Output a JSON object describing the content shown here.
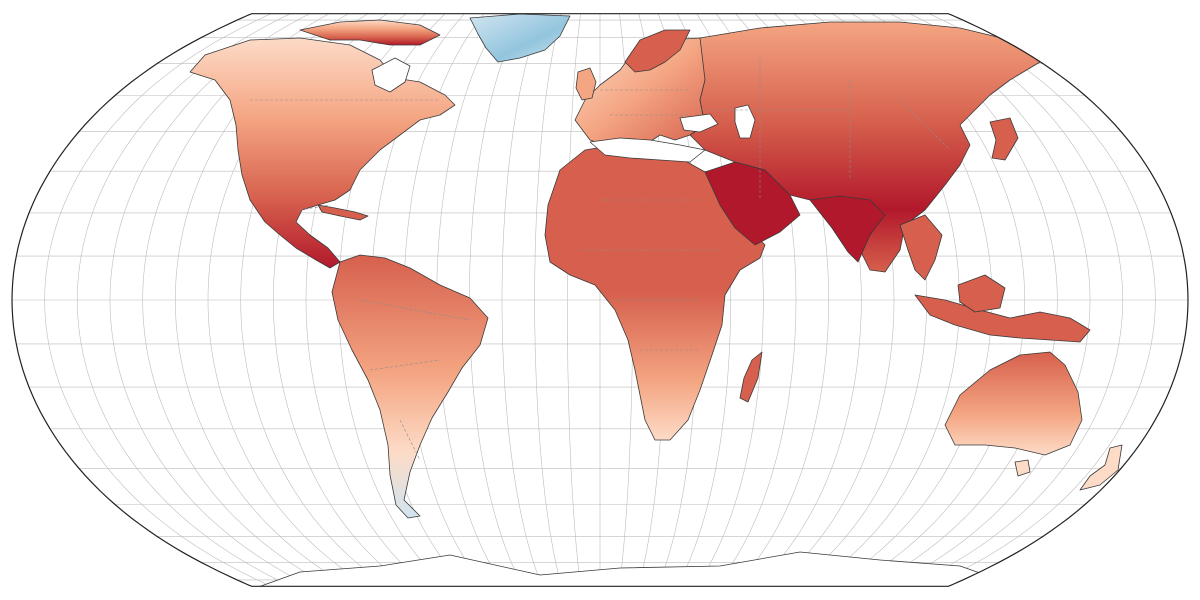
{
  "map": {
    "projection": "Equal Earth",
    "ocean_color": "#ffffff",
    "graticule_color": "#bdbdbd",
    "coast_color": "#3a3a3a",
    "border_color": "#8c8c8c",
    "frame_color": "#222222",
    "palette": {
      "very_hot": "#b2182b",
      "hot": "#d6604d",
      "warm": "#f4a582",
      "mild": "#fddbc7",
      "neutral": "#f7f7f7",
      "cool": "#d1e5f0",
      "cold": "#92c5de",
      "very_cold": "#4393c3"
    },
    "graticule": {
      "lon_step": 10,
      "lat_step": 10
    }
  }
}
